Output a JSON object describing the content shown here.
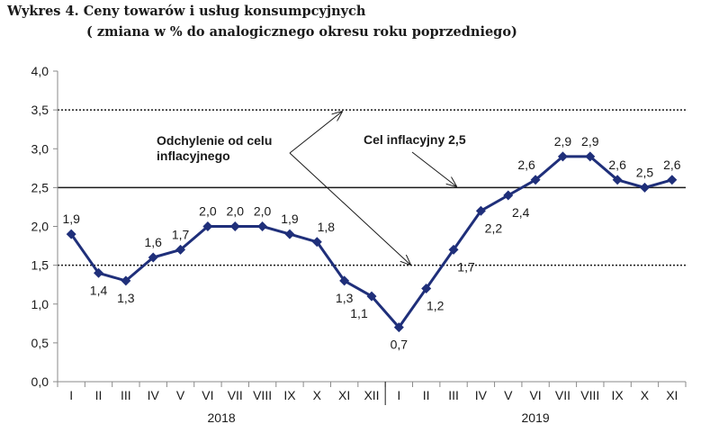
{
  "title": "Wykres 4. Ceny towarów i usług konsumpcyjnych",
  "subtitle": "( zmiana w % do analogicznego okresu roku poprzedniego)",
  "chart_data": {
    "type": "line",
    "categories": [
      "I",
      "II",
      "III",
      "IV",
      "V",
      "VI",
      "VII",
      "VIII",
      "IX",
      "X",
      "XI",
      "XII",
      "I",
      "II",
      "III",
      "IV",
      "V",
      "VI",
      "VII",
      "VIII",
      "IX",
      "X",
      "XI"
    ],
    "year_groups": [
      {
        "label": "2018",
        "start": 0,
        "end": 11
      },
      {
        "label": "2019",
        "start": 12,
        "end": 22
      }
    ],
    "series": [
      {
        "values": [
          1.9,
          1.4,
          1.3,
          1.6,
          1.7,
          2.0,
          2.0,
          2.0,
          1.9,
          1.8,
          1.3,
          1.1,
          0.7,
          1.2,
          1.7,
          2.2,
          2.4,
          2.6,
          2.9,
          2.9,
          2.6,
          2.5,
          2.6
        ],
        "labels": [
          "1,9",
          "1,4",
          "1,3",
          "1,6",
          "1,7",
          "2,0",
          "2,0",
          "2,0",
          "1,9",
          "1,8",
          "1,3",
          "1,1",
          "0,7",
          "1,2",
          "1,7",
          "2,2",
          "2,4",
          "2,6",
          "2,9",
          "2,9",
          "2,6",
          "2,5",
          "2,6"
        ],
        "color": "#1f2f7a"
      }
    ],
    "ylim": [
      0,
      4.0
    ],
    "yticks": [
      0,
      0.5,
      1.0,
      1.5,
      2.0,
      2.5,
      3.0,
      3.5,
      4.0
    ],
    "ytick_labels": [
      "0,0",
      "0,5",
      "1,0",
      "1,5",
      "2,0",
      "2,5",
      "3,0",
      "3,5",
      "4,0"
    ],
    "reference_lines": [
      {
        "value": 2.5,
        "style": "solid"
      },
      {
        "value": 3.5,
        "style": "dotted"
      },
      {
        "value": 1.5,
        "style": "dotted"
      }
    ],
    "annotations": {
      "target": "Cel inflacyjny  2,5",
      "deviation_line1": "Odchylenie od celu",
      "deviation_line2": "inflacyjnego"
    },
    "grid": false,
    "legend": "none"
  }
}
